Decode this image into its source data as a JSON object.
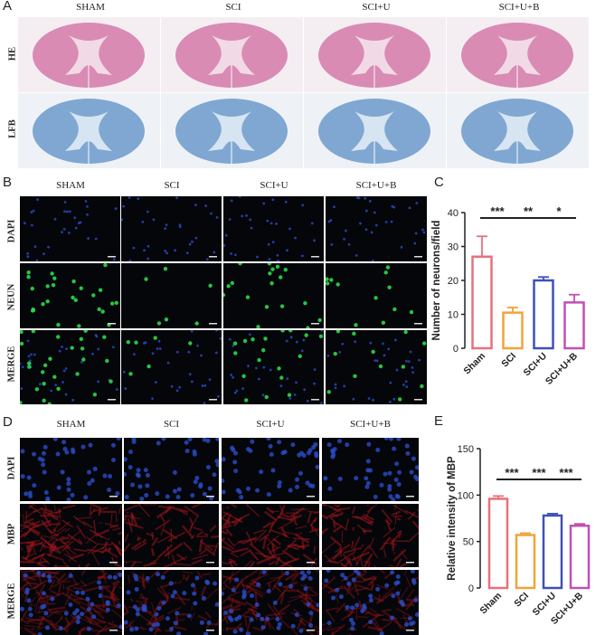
{
  "panels": {
    "a": {
      "letter": "A",
      "columns": [
        "SHAM",
        "SCI",
        "SCI+U",
        "SCI+U+B"
      ],
      "rows": [
        "HE",
        "LFB"
      ]
    },
    "b": {
      "letter": "B",
      "columns": [
        "SHAM",
        "SCI",
        "SCI+U",
        "SCI+U+B"
      ],
      "rows": [
        "DAPI",
        "NEUN",
        "MERGE"
      ]
    },
    "c": {
      "letter": "C"
    },
    "d": {
      "letter": "D",
      "columns": [
        "SHAM",
        "SCI",
        "SCI+U",
        "SCI+U+B"
      ],
      "rows": [
        "DAPI",
        "MBP",
        "MERGE"
      ]
    },
    "e": {
      "letter": "E"
    }
  },
  "colors": {
    "he_tissue": "#d98bb4",
    "lfb_tissue": "#7fa7d1",
    "dapi": "#2a4cc9",
    "neun": "#2bd94a",
    "mbp": "#a0161b",
    "bar_sham": "#e8707c",
    "bar_sci": "#f2a33a",
    "bar_sciu": "#3d50b8",
    "bar_sciub": "#c24fb6"
  },
  "chart_data": [
    {
      "type": "bar",
      "ylabel": "Number of neurons/field",
      "categories": [
        "Sham",
        "SCI",
        "SCI+U",
        "SCI+U+B"
      ],
      "values": [
        27,
        10.5,
        20,
        13.5
      ],
      "errors": [
        6,
        1.5,
        1,
        2.3
      ],
      "ylim": [
        0,
        40
      ],
      "yticks": [
        0,
        10,
        20,
        30,
        40
      ],
      "significance": [
        {
          "from": 0,
          "to": 1,
          "label": "***"
        },
        {
          "from": 1,
          "to": 2,
          "label": "**"
        },
        {
          "from": 2,
          "to": 3,
          "label": "*"
        }
      ]
    },
    {
      "type": "bar",
      "ylabel": "Relative intensity of MBP",
      "categories": [
        "Sham",
        "SCI",
        "SCI+U",
        "SCI+U+B"
      ],
      "values": [
        96,
        57,
        78,
        67
      ],
      "errors": [
        3,
        2,
        2,
        2
      ],
      "ylim": [
        0,
        150
      ],
      "yticks": [
        0,
        50,
        100,
        150
      ],
      "significance": [
        {
          "from": 0,
          "to": 1,
          "label": "***"
        },
        {
          "from": 1,
          "to": 2,
          "label": "***"
        },
        {
          "from": 2,
          "to": 3,
          "label": "***"
        }
      ]
    }
  ]
}
